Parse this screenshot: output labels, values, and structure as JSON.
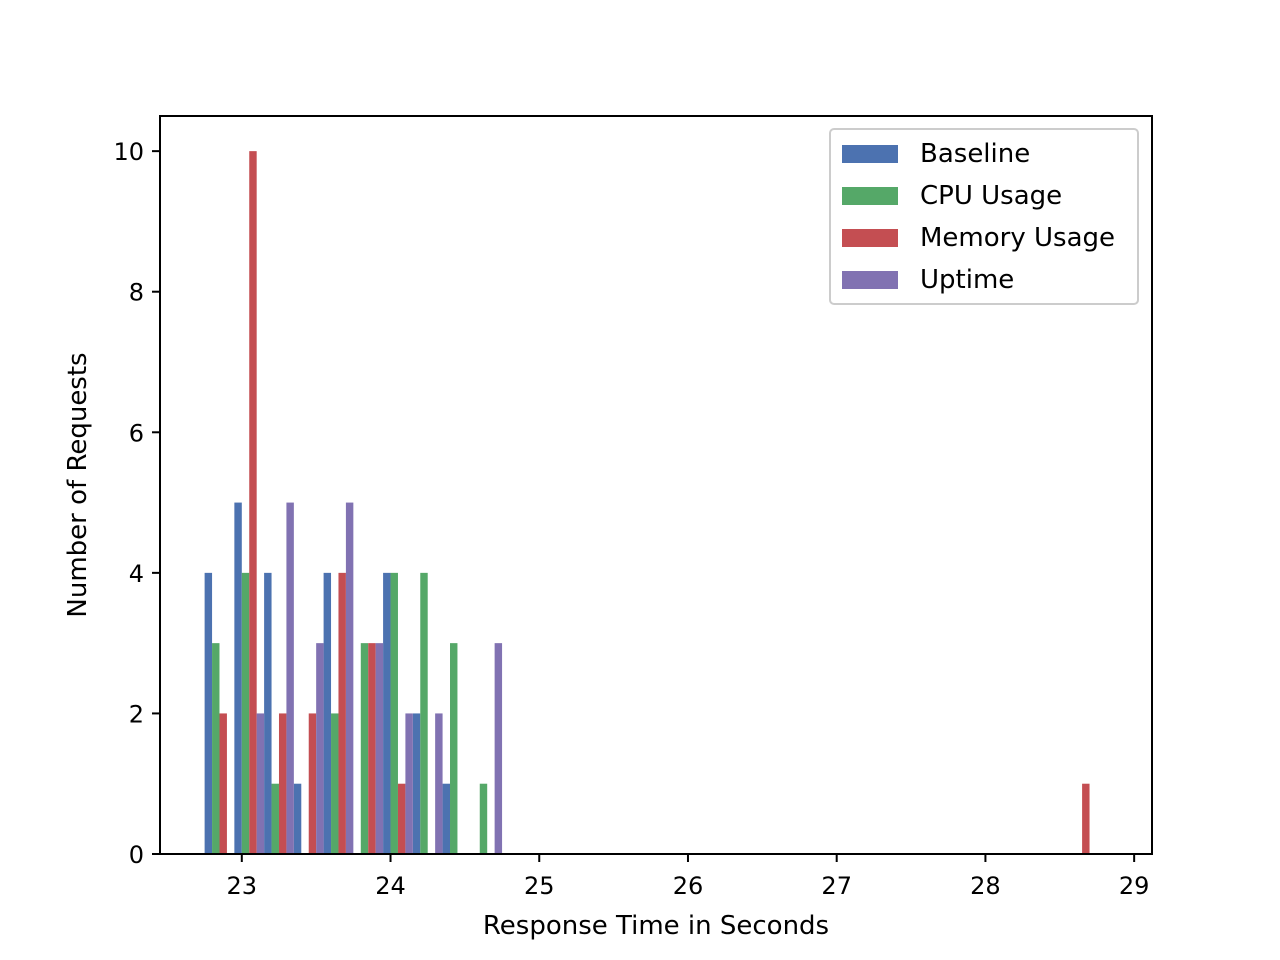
{
  "chart_data": {
    "type": "bar",
    "title": "",
    "xlabel": "Response Time in Seconds",
    "ylabel": "Number of Requests",
    "xlim": [
      22.45,
      29.12
    ],
    "ylim": [
      0,
      10.5
    ],
    "x_ticks": [
      {
        "value": 23,
        "label": "23"
      },
      {
        "value": 24,
        "label": "24"
      },
      {
        "value": 25,
        "label": "25"
      },
      {
        "value": 26,
        "label": "26"
      },
      {
        "value": 27,
        "label": "27"
      },
      {
        "value": 28,
        "label": "28"
      },
      {
        "value": 29,
        "label": "29"
      }
    ],
    "y_ticks": [
      {
        "value": 0,
        "label": "0"
      },
      {
        "value": 2,
        "label": "2"
      },
      {
        "value": 4,
        "label": "4"
      },
      {
        "value": 6,
        "label": "6"
      },
      {
        "value": 8,
        "label": "8"
      },
      {
        "value": 10,
        "label": "10"
      }
    ],
    "bin_edges_start": 22.75,
    "bin_width": 0.2,
    "grid": false,
    "legend_position": "top-right",
    "series": [
      {
        "name": "Baseline",
        "color": "#4c72b0",
        "values": [
          4,
          5,
          4,
          1,
          4,
          0,
          4,
          2,
          1,
          0,
          0,
          0,
          0,
          0,
          0,
          0,
          0,
          0,
          0,
          0,
          0,
          0,
          0,
          0,
          0,
          0,
          0,
          0,
          0,
          0
        ]
      },
      {
        "name": "CPU Usage",
        "color": "#55a868",
        "values": [
          3,
          4,
          1,
          0,
          2,
          3,
          4,
          4,
          3,
          1,
          0,
          0,
          0,
          0,
          0,
          0,
          0,
          0,
          0,
          0,
          0,
          0,
          0,
          0,
          0,
          0,
          0,
          0,
          0,
          0
        ]
      },
      {
        "name": "Memory Usage",
        "color": "#c44e52",
        "values": [
          2,
          10,
          2,
          2,
          4,
          3,
          1,
          0,
          0,
          0,
          0,
          0,
          0,
          0,
          0,
          0,
          0,
          0,
          0,
          0,
          0,
          0,
          0,
          0,
          0,
          0,
          0,
          0,
          0,
          1
        ]
      },
      {
        "name": "Uptime",
        "color": "#8172b2",
        "values": [
          0,
          2,
          5,
          3,
          5,
          3,
          2,
          2,
          0,
          3,
          0,
          0,
          0,
          0,
          0,
          0,
          0,
          0,
          0,
          0,
          0,
          0,
          0,
          0,
          0,
          0,
          0,
          0,
          0,
          0
        ]
      }
    ]
  }
}
